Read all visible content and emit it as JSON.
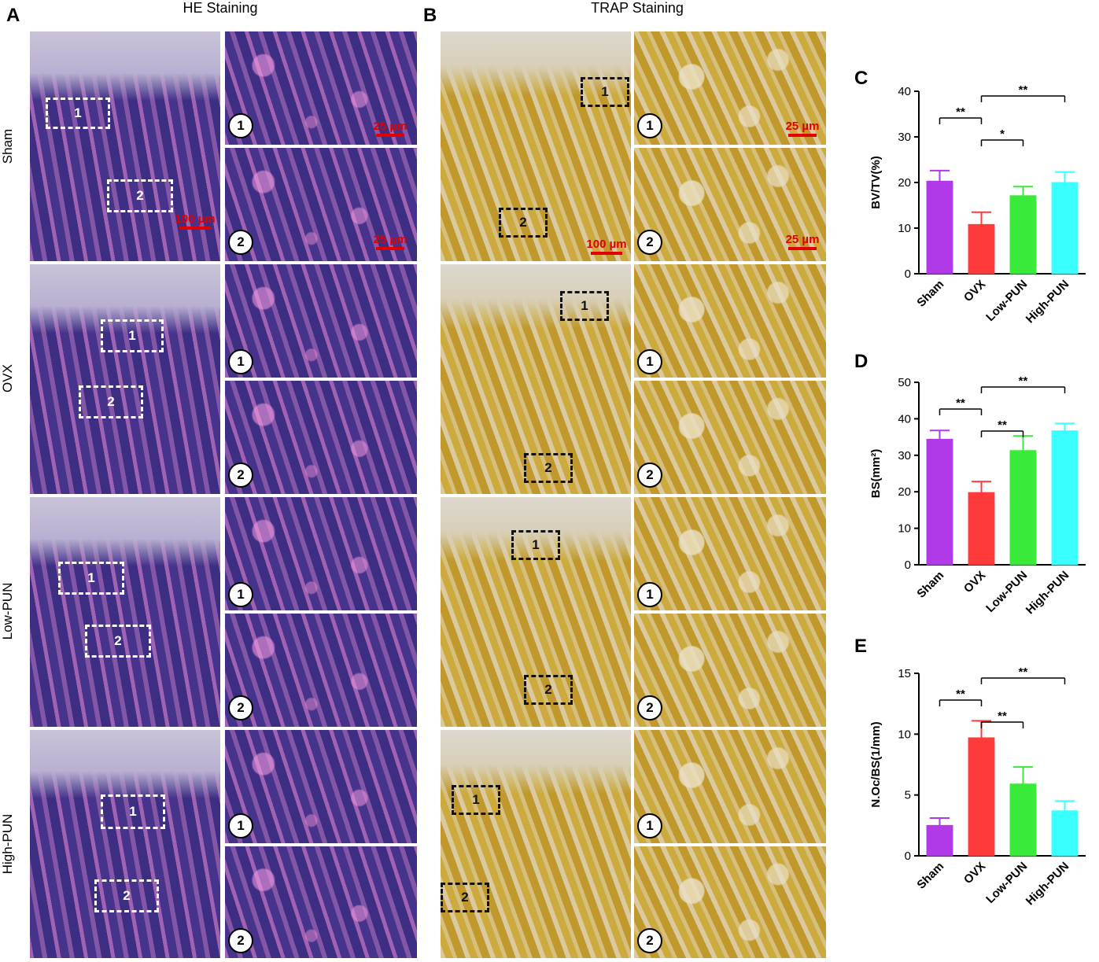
{
  "figure": {
    "panels": {
      "A": "A",
      "B": "B",
      "C": "C",
      "D": "D",
      "E": "E"
    },
    "titles": {
      "he": "HE Staining",
      "trap": "TRAP Staining"
    },
    "groups": [
      "Sham",
      "OVX",
      "Low-PUN",
      "High-PUN"
    ],
    "roi": {
      "one": "1",
      "two": "2"
    },
    "scale_bars": {
      "low_mag": "100 µm",
      "high_mag": "25 µm"
    }
  },
  "chart_data": [
    {
      "type": "bar",
      "panel": "C",
      "categories": [
        "Sham",
        "OVX",
        "Low-PUN",
        "High-PUN"
      ],
      "values": [
        20.3,
        10.8,
        17.1,
        20.0
      ],
      "errors": [
        2.3,
        2.7,
        2.0,
        2.3
      ],
      "ylabel": "BV/TV(%)",
      "ylim": [
        0,
        40
      ],
      "yticks": [
        "0",
        "10",
        "20",
        "30",
        "40"
      ],
      "colors": [
        "#b03ae8",
        "#ff3a3a",
        "#3aea3a",
        "#3affff"
      ],
      "significance": [
        {
          "from": 0,
          "to": 1,
          "label": "**"
        },
        {
          "from": 1,
          "to": 2,
          "label": "*"
        },
        {
          "from": 1,
          "to": 3,
          "label": "**"
        }
      ]
    },
    {
      "type": "bar",
      "panel": "D",
      "categories": [
        "Sham",
        "OVX",
        "Low-PUN",
        "High-PUN"
      ],
      "values": [
        34.4,
        19.8,
        31.3,
        36.7
      ],
      "errors": [
        2.4,
        3.0,
        4.0,
        2.0
      ],
      "ylabel": "BS(mm²)",
      "ylim": [
        0,
        50
      ],
      "yticks": [
        "0",
        "10",
        "20",
        "30",
        "40",
        "50"
      ],
      "colors": [
        "#b03ae8",
        "#ff3a3a",
        "#3aea3a",
        "#3affff"
      ],
      "significance": [
        {
          "from": 0,
          "to": 1,
          "label": "**"
        },
        {
          "from": 1,
          "to": 2,
          "label": "**"
        },
        {
          "from": 1,
          "to": 3,
          "label": "**"
        }
      ]
    },
    {
      "type": "bar",
      "panel": "E",
      "categories": [
        "Sham",
        "OVX",
        "Low-PUN",
        "High-PUN"
      ],
      "values": [
        2.5,
        9.7,
        5.9,
        3.7
      ],
      "errors": [
        0.6,
        1.4,
        1.4,
        0.8
      ],
      "ylabel": "N.Oc/BS(1/mm)",
      "ylim": [
        0,
        15
      ],
      "yticks": [
        "0",
        "5",
        "10",
        "15"
      ],
      "colors": [
        "#b03ae8",
        "#ff3a3a",
        "#3aea3a",
        "#3affff"
      ],
      "significance": [
        {
          "from": 0,
          "to": 1,
          "label": "**"
        },
        {
          "from": 1,
          "to": 2,
          "label": "**"
        },
        {
          "from": 1,
          "to": 3,
          "label": "**"
        }
      ]
    }
  ]
}
